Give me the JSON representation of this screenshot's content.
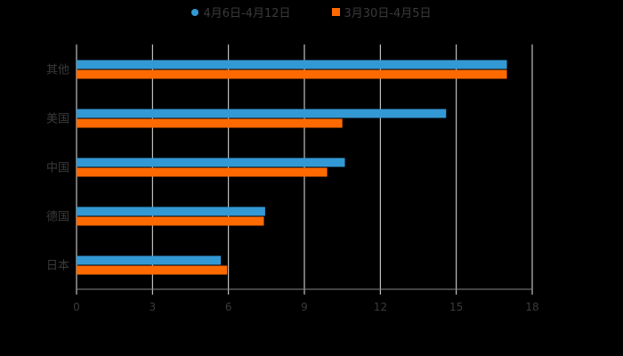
{
  "legend": [
    {
      "label": "4月6日-4月12日",
      "color": "#3399d4",
      "shape": "circle"
    },
    {
      "label": "3月30日-4月5日",
      "color": "#ff6a00",
      "shape": "square"
    }
  ],
  "chart_data": {
    "type": "bar",
    "orientation": "horizontal",
    "title": "",
    "categories": [
      "其他",
      "美国",
      "中国",
      "德国",
      "日本"
    ],
    "series": [
      {
        "name": "4月6日-4月12日",
        "color": "#3399d4",
        "values": [
          17.0,
          14.6,
          10.6,
          7.45,
          5.7
        ]
      },
      {
        "name": "3月30日-4月5日",
        "color": "#ff6a00",
        "values": [
          17.0,
          10.5,
          9.9,
          7.4,
          5.95
        ]
      }
    ],
    "xlim": [
      0,
      18
    ],
    "xticks": [
      "0",
      "3",
      "6",
      "9",
      "12",
      "15",
      "18"
    ],
    "grid": true,
    "legend_position": "top",
    "xlabel": "",
    "ylabel": ""
  }
}
